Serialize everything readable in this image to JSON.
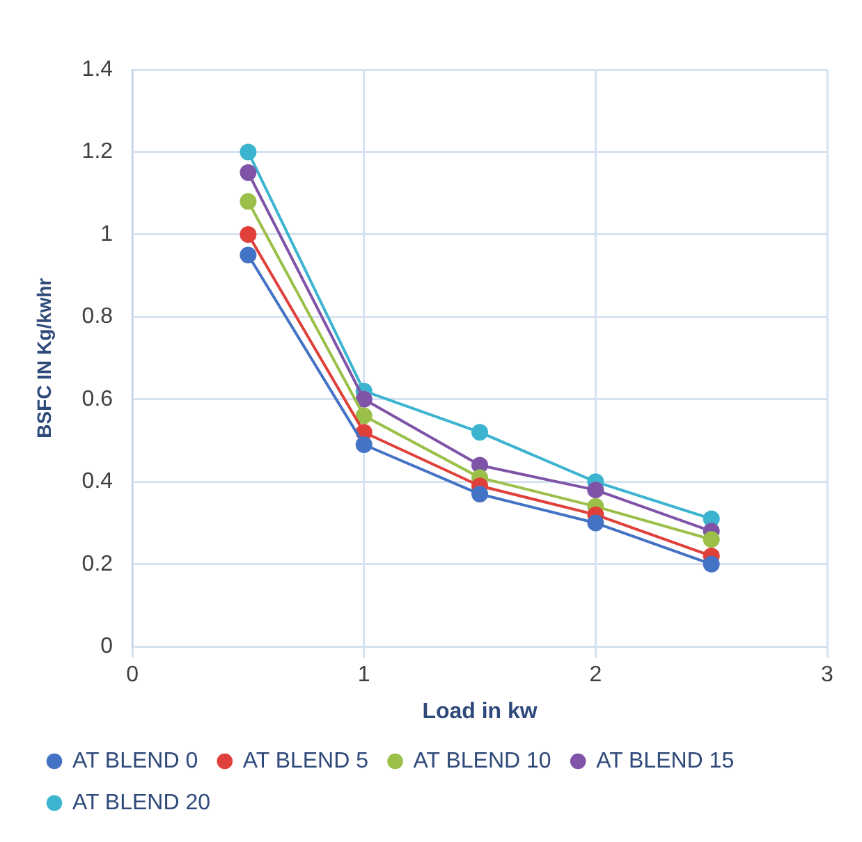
{
  "chart_data": {
    "type": "line",
    "xlabel": "Load in kw",
    "ylabel": "BSFC IN Kg/kwhr",
    "x": [
      0.5,
      1,
      1.5,
      2,
      2.5
    ],
    "series": [
      {
        "name": "AT BLEND 0",
        "color": "#4472c4",
        "values": [
          0.95,
          0.49,
          0.37,
          0.3,
          0.2
        ]
      },
      {
        "name": "AT BLEND 5",
        "color": "#e0403a",
        "values": [
          1.0,
          0.52,
          0.39,
          0.32,
          0.22
        ]
      },
      {
        "name": "AT BLEND 10",
        "color": "#9bc04a",
        "values": [
          1.08,
          0.56,
          0.41,
          0.34,
          0.26
        ]
      },
      {
        "name": "AT BLEND 15",
        "color": "#7f54a8",
        "values": [
          1.15,
          0.6,
          0.44,
          0.38,
          0.28
        ]
      },
      {
        "name": "AT BLEND 20",
        "color": "#3cb4d0",
        "values": [
          1.2,
          0.62,
          0.52,
          0.4,
          0.31
        ]
      }
    ],
    "xlim": [
      0,
      3
    ],
    "xticks": [
      0,
      1,
      2,
      3
    ],
    "ylim": [
      0,
      1.4
    ],
    "yticks": [
      0,
      0.2,
      0.4,
      0.6,
      0.8,
      1,
      1.2,
      1.4
    ],
    "grid": true,
    "legend": "bottom",
    "marker": "circle",
    "line_style": "solid"
  }
}
